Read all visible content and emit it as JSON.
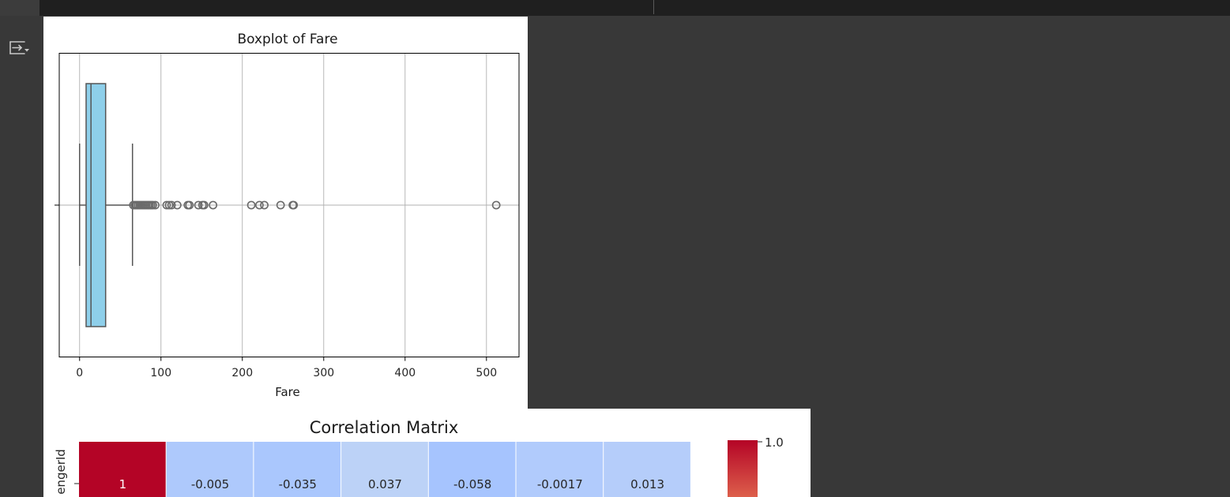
{
  "boxplot": {
    "title": "Boxplot of Fare",
    "xlabel": "Fare",
    "ticks": [
      "0",
      "100",
      "200",
      "300",
      "400",
      "500"
    ]
  },
  "correlation": {
    "title": "Correlation Matrix",
    "row_label": "engerId",
    "cells": [
      "1",
      "-0.005",
      "-0.035",
      "0.037",
      "-0.058",
      "-0.0017",
      "0.013"
    ],
    "colorbar_tick": "1.0"
  },
  "chart_data": [
    {
      "type": "boxplot",
      "title": "Boxplot of Fare",
      "xlabel": "Fare",
      "xlim": [
        -25,
        540
      ],
      "x_ticks": [
        0,
        100,
        200,
        300,
        400,
        500
      ],
      "grid": true,
      "box_color": "#8ecfea",
      "whisker_low": 0,
      "q1": 8,
      "median": 14,
      "q3": 32,
      "whisker_high": 65,
      "outliers": [
        66,
        68,
        70,
        72,
        74,
        76,
        78,
        80,
        82,
        84,
        86,
        88,
        90,
        93,
        107,
        110,
        113,
        120,
        133,
        135,
        146,
        151,
        153,
        164,
        211,
        221,
        227,
        247,
        262,
        263,
        512
      ]
    },
    {
      "type": "heatmap",
      "title": "Correlation Matrix",
      "rows": [
        "engerId"
      ],
      "values": [
        [
          1,
          -0.005,
          -0.035,
          0.037,
          -0.058,
          -0.0017,
          0.013
        ]
      ],
      "cell_colors": [
        "#b40426",
        "#aec9fc",
        "#aac7fd",
        "#bcd2f7",
        "#a6c4fe",
        "#b1cbfc",
        "#b5cdfa"
      ],
      "colormap": "coolwarm",
      "colorbar_ticks": [
        1.0
      ]
    }
  ]
}
